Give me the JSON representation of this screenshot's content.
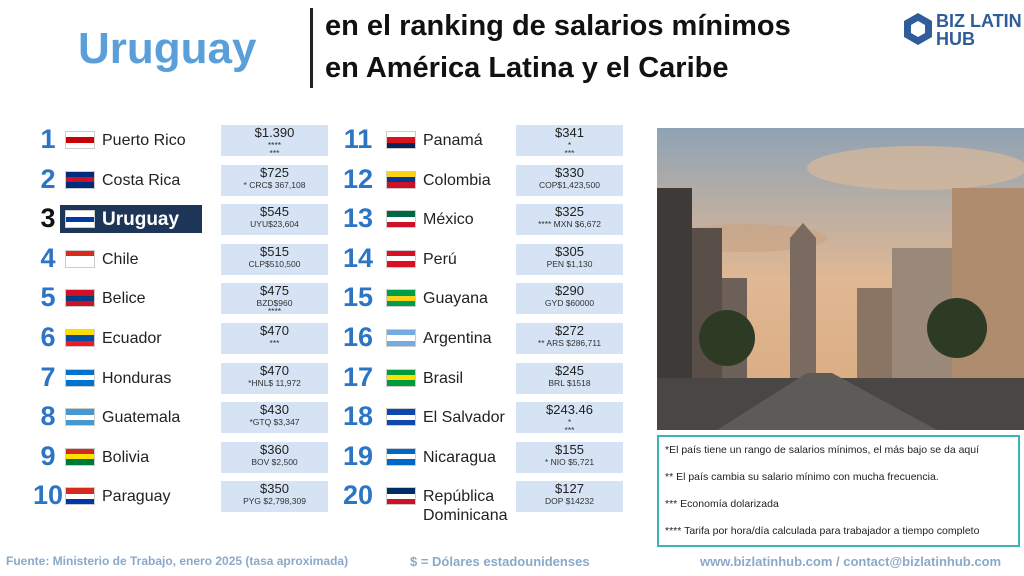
{
  "header": {
    "title": "Uruguay",
    "subtitle_lines": [
      "en el ranking de salarios mínimos",
      "en América Latina y el Caribe"
    ],
    "logo_lines": [
      "BIZ LATIN",
      "HUB"
    ]
  },
  "ranking": [
    {
      "rank": "1",
      "country": "Puerto Rico",
      "salary": "$1.390",
      "details": [
        "****",
        "***"
      ]
    },
    {
      "rank": "2",
      "country": "Costa Rica",
      "salary": "$725",
      "details": [
        "* CRC$ 367,108"
      ]
    },
    {
      "rank": "3",
      "country": "Uruguay",
      "salary": "$545",
      "details": [
        "UYU$23,604"
      ]
    },
    {
      "rank": "4",
      "country": "Chile",
      "salary": "$515",
      "details": [
        "CLP$510,500"
      ]
    },
    {
      "rank": "5",
      "country": "Belice",
      "salary": "$475",
      "details": [
        "BZD$960",
        "****"
      ]
    },
    {
      "rank": "6",
      "country": "Ecuador",
      "salary": "$470",
      "details": [
        "***"
      ]
    },
    {
      "rank": "7",
      "country": "Honduras",
      "salary": "$470",
      "details": [
        "*HNL$ 11,972"
      ]
    },
    {
      "rank": "8",
      "country": "Guatemala",
      "salary": "$430",
      "details": [
        "*GTQ $3,347"
      ]
    },
    {
      "rank": "9",
      "country": "Bolivia",
      "salary": "$360",
      "details": [
        "BOV $2,500"
      ]
    },
    {
      "rank": "10",
      "country": "Paraguay",
      "salary": "$350",
      "details": [
        "PYG $2,798,309"
      ]
    },
    {
      "rank": "11",
      "country": "Panamá",
      "salary": "$341",
      "details": [
        "*",
        "***"
      ]
    },
    {
      "rank": "12",
      "country": "Colombia",
      "salary": "$330",
      "details": [
        "COP$1,423,500"
      ]
    },
    {
      "rank": "13",
      "country": "México",
      "salary": "$325",
      "details": [
        "**** MXN $6,672"
      ]
    },
    {
      "rank": "14",
      "country": "Perú",
      "salary": "$305",
      "details": [
        "PEN $1,130"
      ]
    },
    {
      "rank": "15",
      "country": "Guayana",
      "salary": "$290",
      "details": [
        "GYD $60000"
      ]
    },
    {
      "rank": "16",
      "country": "Argentina",
      "salary": "$272",
      "details": [
        "** ARS $286,711"
      ]
    },
    {
      "rank": "17",
      "country": "Brasil",
      "salary": "$245",
      "details": [
        "BRL $1518"
      ]
    },
    {
      "rank": "18",
      "country": "El Salvador",
      "salary": "$243.46",
      "details": [
        "*",
        "***"
      ]
    },
    {
      "rank": "19",
      "country": "Nicaragua",
      "salary": "$155",
      "details": [
        "* NIO $5,721"
      ]
    },
    {
      "rank": "20",
      "country": "República Dominicana",
      "salary": "$127",
      "details": [
        "DOP $14232"
      ]
    }
  ],
  "notes": [
    "*El país tiene un rango de salarios mínimos, el más bajo se da aquí",
    "** El país cambia su salario mínimo con mucha frecuencia.",
    "*** Economía dolarizada",
    "**** Tarifa por hora/día calculada para trabajador a tiempo completo"
  ],
  "footer": {
    "source": "Fuente: Ministerio de Trabajo, enero 2025 (tasa aproximada)",
    "currency": "$ = Dólares estadounidenses",
    "contact": "www.bizlatinhub.com / contact@bizlatinhub.com"
  }
}
